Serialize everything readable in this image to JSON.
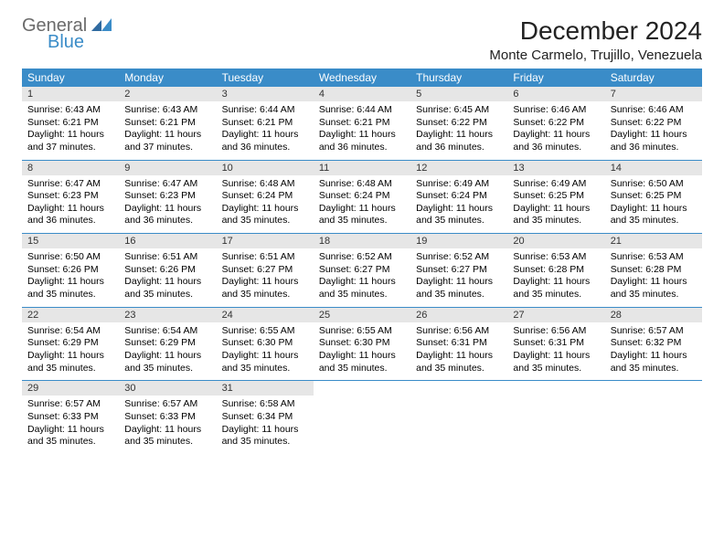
{
  "brand": {
    "general": "General",
    "blue": "Blue"
  },
  "title": {
    "month": "December 2024",
    "location": "Monte Carmelo, Trujillo, Venezuela"
  },
  "colors": {
    "accent": "#3a8cc8",
    "dayhead_bg": "#e6e6e6",
    "text": "#000000"
  },
  "weekdays": [
    "Sunday",
    "Monday",
    "Tuesday",
    "Wednesday",
    "Thursday",
    "Friday",
    "Saturday"
  ],
  "days": [
    {
      "n": "1",
      "sr": "6:43 AM",
      "ss": "6:21 PM",
      "dl": "11 hours and 37 minutes."
    },
    {
      "n": "2",
      "sr": "6:43 AM",
      "ss": "6:21 PM",
      "dl": "11 hours and 37 minutes."
    },
    {
      "n": "3",
      "sr": "6:44 AM",
      "ss": "6:21 PM",
      "dl": "11 hours and 36 minutes."
    },
    {
      "n": "4",
      "sr": "6:44 AM",
      "ss": "6:21 PM",
      "dl": "11 hours and 36 minutes."
    },
    {
      "n": "5",
      "sr": "6:45 AM",
      "ss": "6:22 PM",
      "dl": "11 hours and 36 minutes."
    },
    {
      "n": "6",
      "sr": "6:46 AM",
      "ss": "6:22 PM",
      "dl": "11 hours and 36 minutes."
    },
    {
      "n": "7",
      "sr": "6:46 AM",
      "ss": "6:22 PM",
      "dl": "11 hours and 36 minutes."
    },
    {
      "n": "8",
      "sr": "6:47 AM",
      "ss": "6:23 PM",
      "dl": "11 hours and 36 minutes."
    },
    {
      "n": "9",
      "sr": "6:47 AM",
      "ss": "6:23 PM",
      "dl": "11 hours and 36 minutes."
    },
    {
      "n": "10",
      "sr": "6:48 AM",
      "ss": "6:24 PM",
      "dl": "11 hours and 35 minutes."
    },
    {
      "n": "11",
      "sr": "6:48 AM",
      "ss": "6:24 PM",
      "dl": "11 hours and 35 minutes."
    },
    {
      "n": "12",
      "sr": "6:49 AM",
      "ss": "6:24 PM",
      "dl": "11 hours and 35 minutes."
    },
    {
      "n": "13",
      "sr": "6:49 AM",
      "ss": "6:25 PM",
      "dl": "11 hours and 35 minutes."
    },
    {
      "n": "14",
      "sr": "6:50 AM",
      "ss": "6:25 PM",
      "dl": "11 hours and 35 minutes."
    },
    {
      "n": "15",
      "sr": "6:50 AM",
      "ss": "6:26 PM",
      "dl": "11 hours and 35 minutes."
    },
    {
      "n": "16",
      "sr": "6:51 AM",
      "ss": "6:26 PM",
      "dl": "11 hours and 35 minutes."
    },
    {
      "n": "17",
      "sr": "6:51 AM",
      "ss": "6:27 PM",
      "dl": "11 hours and 35 minutes."
    },
    {
      "n": "18",
      "sr": "6:52 AM",
      "ss": "6:27 PM",
      "dl": "11 hours and 35 minutes."
    },
    {
      "n": "19",
      "sr": "6:52 AM",
      "ss": "6:27 PM",
      "dl": "11 hours and 35 minutes."
    },
    {
      "n": "20",
      "sr": "6:53 AM",
      "ss": "6:28 PM",
      "dl": "11 hours and 35 minutes."
    },
    {
      "n": "21",
      "sr": "6:53 AM",
      "ss": "6:28 PM",
      "dl": "11 hours and 35 minutes."
    },
    {
      "n": "22",
      "sr": "6:54 AM",
      "ss": "6:29 PM",
      "dl": "11 hours and 35 minutes."
    },
    {
      "n": "23",
      "sr": "6:54 AM",
      "ss": "6:29 PM",
      "dl": "11 hours and 35 minutes."
    },
    {
      "n": "24",
      "sr": "6:55 AM",
      "ss": "6:30 PM",
      "dl": "11 hours and 35 minutes."
    },
    {
      "n": "25",
      "sr": "6:55 AM",
      "ss": "6:30 PM",
      "dl": "11 hours and 35 minutes."
    },
    {
      "n": "26",
      "sr": "6:56 AM",
      "ss": "6:31 PM",
      "dl": "11 hours and 35 minutes."
    },
    {
      "n": "27",
      "sr": "6:56 AM",
      "ss": "6:31 PM",
      "dl": "11 hours and 35 minutes."
    },
    {
      "n": "28",
      "sr": "6:57 AM",
      "ss": "6:32 PM",
      "dl": "11 hours and 35 minutes."
    },
    {
      "n": "29",
      "sr": "6:57 AM",
      "ss": "6:33 PM",
      "dl": "11 hours and 35 minutes."
    },
    {
      "n": "30",
      "sr": "6:57 AM",
      "ss": "6:33 PM",
      "dl": "11 hours and 35 minutes."
    },
    {
      "n": "31",
      "sr": "6:58 AM",
      "ss": "6:34 PM",
      "dl": "11 hours and 35 minutes."
    }
  ],
  "labels": {
    "sunrise": "Sunrise: ",
    "sunset": "Sunset: ",
    "daylight": "Daylight: "
  },
  "layout": {
    "start_weekday": 0,
    "rows": 5,
    "cols": 7
  }
}
